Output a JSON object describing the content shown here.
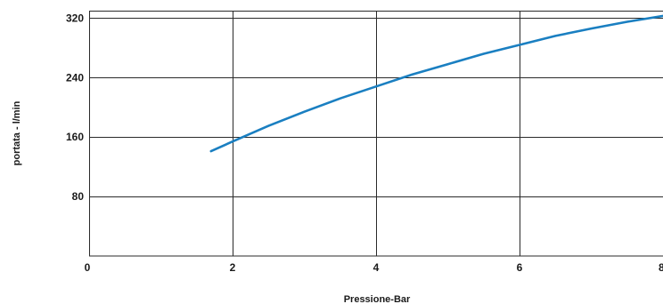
{
  "chart_data": {
    "type": "line",
    "title": "",
    "xlabel": "Pressione-Bar",
    "ylabel": "portata - l/min",
    "xlim": [
      0,
      8
    ],
    "ylim": [
      0,
      330
    ],
    "x_ticks": [
      0,
      2,
      4,
      6,
      8
    ],
    "x_tick_labels": [
      "0",
      "2",
      "4",
      "6",
      "8"
    ],
    "y_ticks": [
      80,
      160,
      240,
      320
    ],
    "y_tick_labels": [
      "80",
      "160",
      "240",
      "320"
    ],
    "grid": true,
    "legend": "none",
    "series": [
      {
        "color": "#1a7fc1",
        "x": [
          1.7,
          2.0,
          2.5,
          3.0,
          3.5,
          4.0,
          4.5,
          5.0,
          5.5,
          6.0,
          6.5,
          7.0,
          7.5,
          8.0
        ],
        "y": [
          141,
          154,
          175,
          194,
          212,
          228,
          244,
          258,
          272,
          284,
          296,
          306,
          315,
          323
        ]
      }
    ]
  }
}
